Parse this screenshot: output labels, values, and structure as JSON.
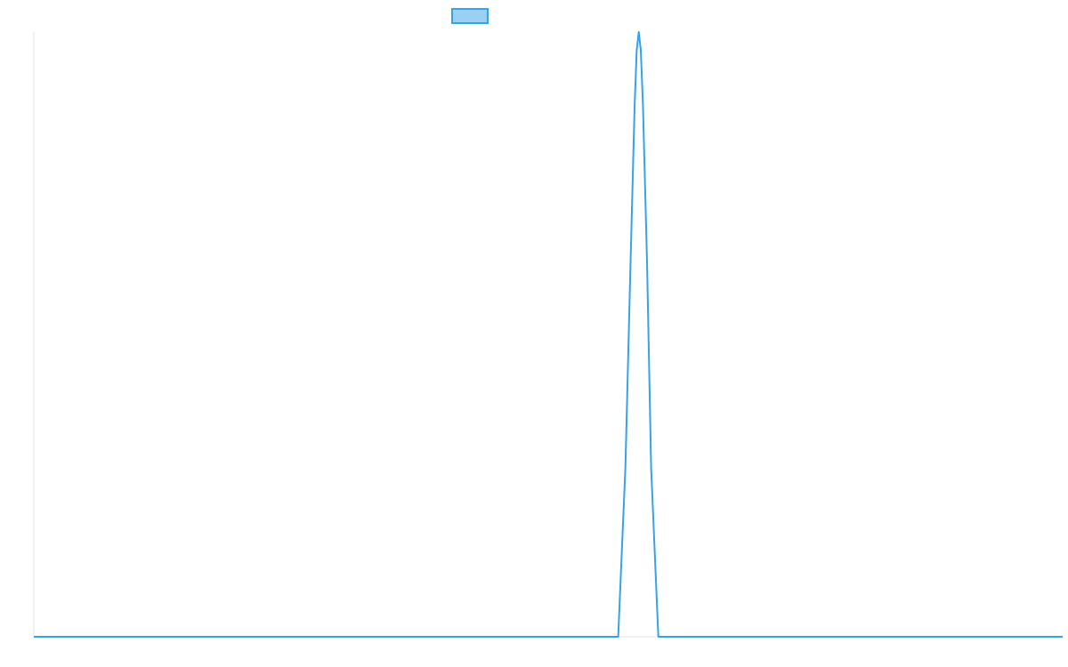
{
  "chart_data": {
    "type": "line",
    "title": "",
    "xlabel": "",
    "ylabel": "",
    "legend": {
      "position": "top-center",
      "entries": [
        {
          "label": "",
          "color": "#36a2eb",
          "fill": "#9ad0f5"
        }
      ]
    },
    "grid": false,
    "xlim": [
      0,
      100
    ],
    "ylim": [
      0,
      1
    ],
    "series": [
      {
        "color": "#36a2eb",
        "x": [
          0,
          56.8,
          57.5,
          58.0,
          58.4,
          58.6,
          58.8,
          59.0,
          59.2,
          59.6,
          60.0,
          60.7,
          100
        ],
        "y": [
          0,
          0,
          0.28,
          0.62,
          0.88,
          0.97,
          1.0,
          0.97,
          0.88,
          0.62,
          0.28,
          0,
          0
        ]
      }
    ]
  }
}
